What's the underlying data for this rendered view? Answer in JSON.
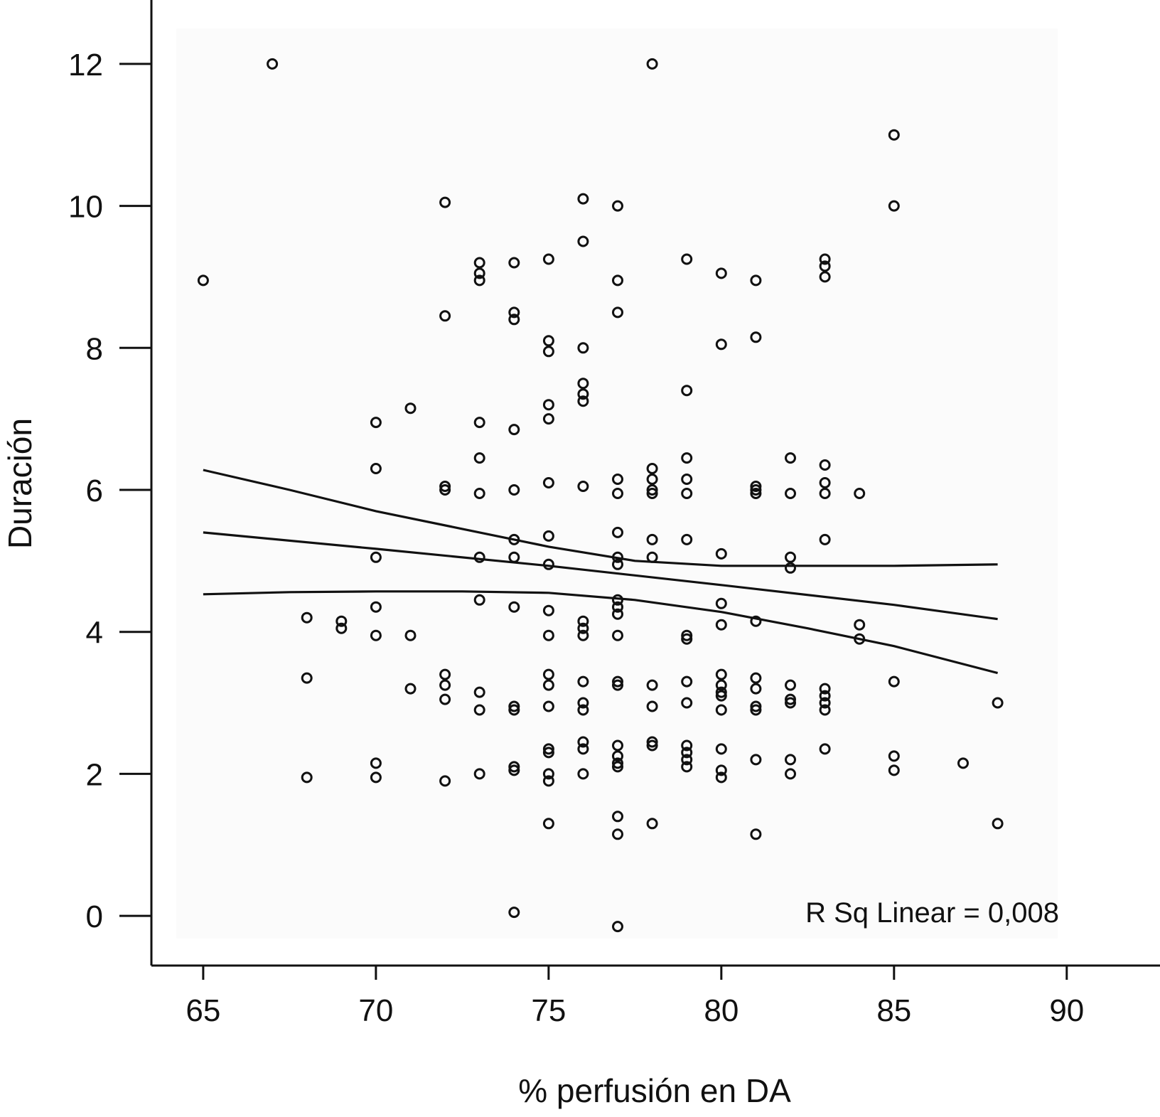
{
  "chart_data": {
    "type": "scatter",
    "xlabel": "% perfusión en DA",
    "ylabel": "Duración",
    "xlim": [
      63.5,
      92.7
    ],
    "ylim": [
      -0.7,
      12.9
    ],
    "xticks": [
      65,
      70,
      75,
      80,
      85,
      90
    ],
    "yticks": [
      0,
      2,
      4,
      6,
      8,
      10,
      12
    ],
    "grid": false,
    "legend": "none",
    "annotation": "R Sq Linear = 0,008",
    "points": [
      [
        65,
        8.95
      ],
      [
        67,
        12.0
      ],
      [
        68,
        4.2
      ],
      [
        68,
        3.35
      ],
      [
        68,
        1.95
      ],
      [
        69,
        4.15
      ],
      [
        69,
        4.05
      ],
      [
        70,
        6.95
      ],
      [
        70,
        6.3
      ],
      [
        70,
        5.05
      ],
      [
        70,
        4.35
      ],
      [
        70,
        3.95
      ],
      [
        70,
        2.15
      ],
      [
        70,
        1.95
      ],
      [
        71,
        7.15
      ],
      [
        71,
        3.95
      ],
      [
        71,
        3.2
      ],
      [
        72,
        10.05
      ],
      [
        72,
        8.45
      ],
      [
        72,
        6.05
      ],
      [
        72,
        6.0
      ],
      [
        72,
        3.4
      ],
      [
        72,
        3.25
      ],
      [
        72,
        3.05
      ],
      [
        72,
        1.9
      ],
      [
        73,
        9.2
      ],
      [
        73,
        9.05
      ],
      [
        73,
        8.95
      ],
      [
        73,
        6.95
      ],
      [
        73,
        6.45
      ],
      [
        73,
        5.95
      ],
      [
        73,
        5.05
      ],
      [
        73,
        4.45
      ],
      [
        73,
        3.15
      ],
      [
        73,
        2.9
      ],
      [
        73,
        2.0
      ],
      [
        74,
        9.2
      ],
      [
        74,
        8.5
      ],
      [
        74,
        8.4
      ],
      [
        74,
        6.85
      ],
      [
        74,
        6.0
      ],
      [
        74,
        5.3
      ],
      [
        74,
        5.05
      ],
      [
        74,
        4.35
      ],
      [
        74,
        2.95
      ],
      [
        74,
        2.9
      ],
      [
        74,
        2.1
      ],
      [
        74,
        2.05
      ],
      [
        74,
        0.05
      ],
      [
        75,
        9.25
      ],
      [
        75,
        8.1
      ],
      [
        75,
        7.95
      ],
      [
        75,
        7.2
      ],
      [
        75,
        7.0
      ],
      [
        75,
        6.1
      ],
      [
        75,
        5.35
      ],
      [
        75,
        4.95
      ],
      [
        75,
        4.3
      ],
      [
        75,
        3.95
      ],
      [
        75,
        3.4
      ],
      [
        75,
        3.25
      ],
      [
        75,
        2.95
      ],
      [
        75,
        2.35
      ],
      [
        75,
        2.3
      ],
      [
        75,
        2.0
      ],
      [
        75,
        1.9
      ],
      [
        75,
        1.3
      ],
      [
        76,
        10.1
      ],
      [
        76,
        9.5
      ],
      [
        76,
        8.0
      ],
      [
        76,
        7.5
      ],
      [
        76,
        7.35
      ],
      [
        76,
        7.25
      ],
      [
        76,
        6.05
      ],
      [
        76,
        4.15
      ],
      [
        76,
        4.05
      ],
      [
        76,
        3.95
      ],
      [
        76,
        3.3
      ],
      [
        76,
        3.0
      ],
      [
        76,
        2.9
      ],
      [
        76,
        2.45
      ],
      [
        76,
        2.35
      ],
      [
        76,
        2.0
      ],
      [
        77,
        10.0
      ],
      [
        77,
        8.95
      ],
      [
        77,
        8.5
      ],
      [
        77,
        6.15
      ],
      [
        77,
        5.95
      ],
      [
        77,
        5.4
      ],
      [
        77,
        5.05
      ],
      [
        77,
        4.95
      ],
      [
        77,
        4.45
      ],
      [
        77,
        4.35
      ],
      [
        77,
        4.25
      ],
      [
        77,
        3.95
      ],
      [
        77,
        3.3
      ],
      [
        77,
        3.25
      ],
      [
        77,
        2.4
      ],
      [
        77,
        2.25
      ],
      [
        77,
        2.15
      ],
      [
        77,
        2.1
      ],
      [
        77,
        1.4
      ],
      [
        77,
        1.15
      ],
      [
        77,
        -0.15
      ],
      [
        78,
        12.0
      ],
      [
        78,
        6.3
      ],
      [
        78,
        6.15
      ],
      [
        78,
        6.0
      ],
      [
        78,
        5.95
      ],
      [
        78,
        5.3
      ],
      [
        78,
        5.05
      ],
      [
        78,
        3.25
      ],
      [
        78,
        2.95
      ],
      [
        78,
        2.45
      ],
      [
        78,
        2.4
      ],
      [
        78,
        1.3
      ],
      [
        79,
        9.25
      ],
      [
        79,
        7.4
      ],
      [
        79,
        6.45
      ],
      [
        79,
        6.15
      ],
      [
        79,
        5.95
      ],
      [
        79,
        5.3
      ],
      [
        79,
        3.95
      ],
      [
        79,
        3.9
      ],
      [
        79,
        3.3
      ],
      [
        79,
        3.0
      ],
      [
        79,
        2.4
      ],
      [
        79,
        2.3
      ],
      [
        79,
        2.2
      ],
      [
        79,
        2.1
      ],
      [
        80,
        9.05
      ],
      [
        80,
        8.05
      ],
      [
        80,
        5.1
      ],
      [
        80,
        4.4
      ],
      [
        80,
        4.1
      ],
      [
        80,
        3.4
      ],
      [
        80,
        3.25
      ],
      [
        80,
        3.15
      ],
      [
        80,
        3.1
      ],
      [
        80,
        2.9
      ],
      [
        80,
        2.35
      ],
      [
        80,
        2.05
      ],
      [
        80,
        1.95
      ],
      [
        81,
        8.95
      ],
      [
        81,
        8.15
      ],
      [
        81,
        6.05
      ],
      [
        81,
        6.0
      ],
      [
        81,
        5.95
      ],
      [
        81,
        4.15
      ],
      [
        81,
        3.35
      ],
      [
        81,
        3.2
      ],
      [
        81,
        2.95
      ],
      [
        81,
        2.9
      ],
      [
        81,
        2.2
      ],
      [
        81,
        1.15
      ],
      [
        82,
        6.45
      ],
      [
        82,
        5.95
      ],
      [
        82,
        5.05
      ],
      [
        82,
        4.9
      ],
      [
        82,
        3.25
      ],
      [
        82,
        3.05
      ],
      [
        82,
        3.0
      ],
      [
        82,
        2.2
      ],
      [
        82,
        2.0
      ],
      [
        83,
        9.25
      ],
      [
        83,
        9.15
      ],
      [
        83,
        9.0
      ],
      [
        83,
        6.35
      ],
      [
        83,
        6.1
      ],
      [
        83,
        5.95
      ],
      [
        83,
        5.3
      ],
      [
        83,
        3.2
      ],
      [
        83,
        3.1
      ],
      [
        83,
        3.0
      ],
      [
        83,
        2.9
      ],
      [
        83,
        2.35
      ],
      [
        84,
        5.95
      ],
      [
        84,
        4.1
      ],
      [
        84,
        3.9
      ],
      [
        85,
        11.0
      ],
      [
        85,
        10.0
      ],
      [
        85,
        3.3
      ],
      [
        85,
        2.25
      ],
      [
        85,
        2.05
      ],
      [
        87,
        2.15
      ],
      [
        88,
        3.0
      ],
      [
        88,
        1.3
      ]
    ],
    "lines": [
      {
        "name": "fit",
        "x": [
          65,
          70,
          75,
          80,
          85,
          88
        ],
        "y": [
          5.4,
          5.17,
          4.93,
          4.66,
          4.38,
          4.18
        ]
      },
      {
        "name": "upper",
        "x": [
          65,
          67.5,
          70,
          72.5,
          75,
          77.5,
          80,
          82.5,
          85,
          88
        ],
        "y": [
          6.28,
          6.0,
          5.7,
          5.45,
          5.2,
          5.0,
          4.93,
          4.93,
          4.93,
          4.95
        ]
      },
      {
        "name": "lower",
        "x": [
          65,
          67.5,
          70,
          72.5,
          75,
          77.5,
          80,
          82.5,
          85,
          88
        ],
        "y": [
          4.53,
          4.56,
          4.57,
          4.57,
          4.55,
          4.45,
          4.28,
          4.05,
          3.8,
          3.42
        ]
      }
    ]
  }
}
